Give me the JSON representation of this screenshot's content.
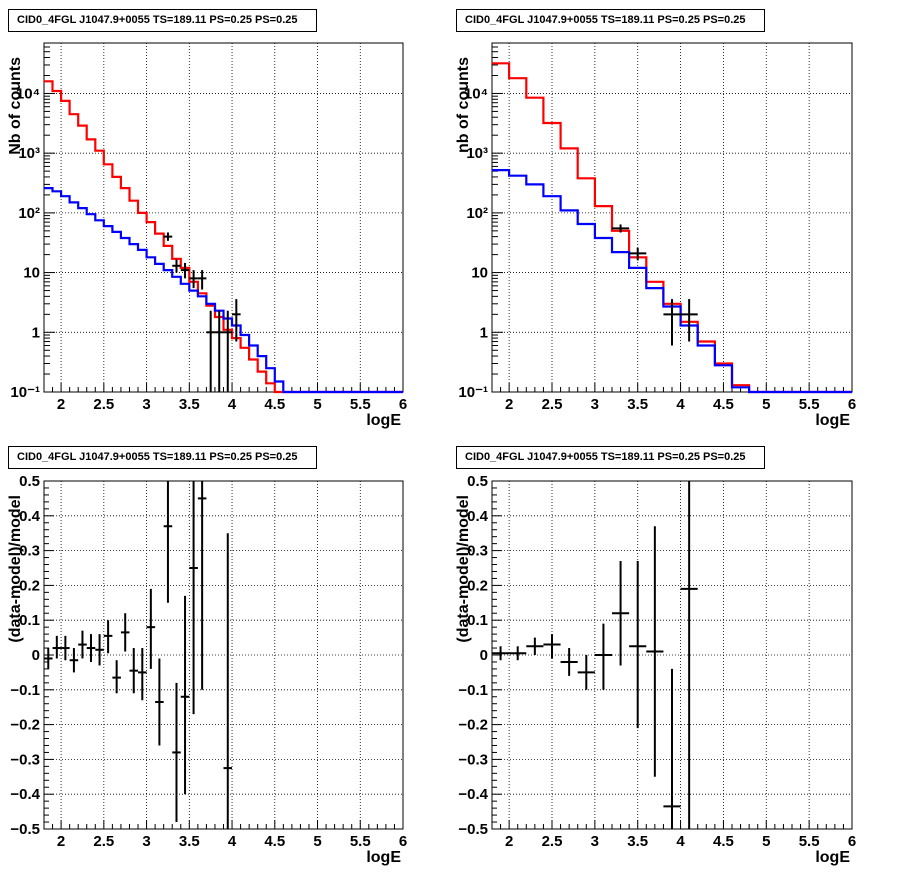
{
  "chart_data": [
    {
      "type": "step-histogram",
      "title": "CID0_4FGL J1047.9+0055 TS=189.11 PS=0.25 PS=0.25",
      "xlabel": "logE",
      "ylabel": "Nb of counts",
      "xlim": [
        1.8,
        6.0
      ],
      "ylim": [
        0.1,
        70000
      ],
      "yscale": "log",
      "grid": true,
      "xticks": [
        "2",
        "2.5",
        "3",
        "3.5",
        "4",
        "4.5",
        "5",
        "5.5",
        "6"
      ],
      "yticks": [
        "10⁻¹",
        "1",
        "10",
        "10²",
        "10³",
        "10⁴"
      ],
      "bin_width": 0.1,
      "series": [
        {
          "color": "#ff0000",
          "x": [
            1.85,
            1.95,
            2.05,
            2.15,
            2.25,
            2.35,
            2.45,
            2.55,
            2.65,
            2.75,
            2.85,
            2.95,
            3.05,
            3.15,
            3.25,
            3.35,
            3.45,
            3.55,
            3.65,
            3.75,
            3.85,
            3.95,
            4.05,
            4.15,
            4.25,
            4.35,
            4.45,
            4.55,
            4.65,
            4.75,
            4.85,
            4.95,
            5.05,
            5.15,
            5.25,
            5.35,
            5.45,
            5.55,
            5.65,
            5.75,
            5.85,
            5.95
          ],
          "y": [
            16000,
            11000,
            7500,
            4500,
            2900,
            1700,
            1100,
            650,
            400,
            260,
            160,
            100,
            70,
            45,
            28,
            17,
            12,
            7,
            4.5,
            2.8,
            1.8,
            1.1,
            0.8,
            0.55,
            0.35,
            0.22,
            0.14,
            0.1,
            0.1,
            0.1,
            0.1,
            0.1,
            0.1,
            0.1,
            0.1,
            0.1,
            0.1,
            0.1,
            0.1,
            0.1,
            0.1,
            0.1
          ]
        },
        {
          "color": "#0000ff",
          "x": [
            1.85,
            1.95,
            2.05,
            2.15,
            2.25,
            2.35,
            2.45,
            2.55,
            2.65,
            2.75,
            2.85,
            2.95,
            3.05,
            3.15,
            3.25,
            3.35,
            3.45,
            3.55,
            3.65,
            3.75,
            3.85,
            3.95,
            4.05,
            4.15,
            4.25,
            4.35,
            4.45,
            4.55,
            4.65,
            4.75,
            4.85,
            4.95,
            5.05,
            5.15,
            5.25,
            5.35,
            5.45,
            5.55,
            5.65,
            5.75,
            5.85,
            5.95
          ],
          "y": [
            260,
            230,
            190,
            150,
            120,
            95,
            75,
            60,
            48,
            38,
            30,
            24,
            18,
            14,
            11,
            8.5,
            6.5,
            5,
            4,
            3,
            2.3,
            1.7,
            1.3,
            0.9,
            0.6,
            0.4,
            0.25,
            0.15,
            0.1,
            0.1,
            0.1,
            0.1,
            0.1,
            0.1,
            0.1,
            0.1,
            0.1,
            0.1,
            0.1,
            0.1,
            0.1,
            0.1
          ]
        }
      ],
      "points": [
        {
          "x": 3.25,
          "y": 40,
          "lo": 34,
          "hi": 47
        },
        {
          "x": 3.35,
          "y": 13,
          "lo": 10,
          "hi": 16.5
        },
        {
          "x": 3.45,
          "y": 11,
          "lo": 8,
          "hi": 14.5
        },
        {
          "x": 3.55,
          "y": 8,
          "lo": 5.5,
          "hi": 11
        },
        {
          "x": 3.65,
          "y": 8,
          "lo": 5.2,
          "hi": 11
        },
        {
          "x": 3.75,
          "y": 1,
          "lo": 0.1,
          "hi": 2.3
        },
        {
          "x": 3.85,
          "y": 1,
          "lo": 0.1,
          "hi": 2.3
        },
        {
          "x": 3.95,
          "y": 1,
          "lo": 0.1,
          "hi": 2.3
        },
        {
          "x": 4.05,
          "y": 2,
          "lo": 0.7,
          "hi": 3.6
        }
      ]
    },
    {
      "type": "step-histogram",
      "title": "CID0_4FGL J1047.9+0055 TS=189.11 PS=0.25 PS=0.25",
      "xlabel": "logE",
      "ylabel": "nb of counts",
      "xlim": [
        1.8,
        6.0
      ],
      "ylim": [
        0.1,
        70000
      ],
      "yscale": "log",
      "grid": true,
      "xticks": [
        "2",
        "2.5",
        "3",
        "3.5",
        "4",
        "4.5",
        "5",
        "5.5",
        "6"
      ],
      "yticks": [
        "10⁻¹",
        "1",
        "10",
        "10²",
        "10³",
        "10⁴"
      ],
      "bin_width": 0.2,
      "series": [
        {
          "color": "#ff0000",
          "x": [
            1.9,
            2.1,
            2.3,
            2.5,
            2.7,
            2.9,
            3.1,
            3.3,
            3.5,
            3.7,
            3.9,
            4.1,
            4.3,
            4.5,
            4.7,
            4.9,
            5.1,
            5.3,
            5.5,
            5.7,
            5.9
          ],
          "y": [
            32000,
            18000,
            8500,
            3200,
            1200,
            380,
            130,
            50,
            18,
            7,
            3,
            1.5,
            0.7,
            0.3,
            0.13,
            0.1,
            0.1,
            0.1,
            0.1,
            0.1,
            0.1
          ]
        },
        {
          "color": "#0000ff",
          "x": [
            1.9,
            2.1,
            2.3,
            2.5,
            2.7,
            2.9,
            3.1,
            3.3,
            3.5,
            3.7,
            3.9,
            4.1,
            4.3,
            4.5,
            4.7,
            4.9,
            5.1,
            5.3,
            5.5,
            5.7,
            5.9
          ],
          "y": [
            520,
            420,
            300,
            190,
            110,
            65,
            38,
            22,
            12,
            5.5,
            2.7,
            1.3,
            0.6,
            0.28,
            0.12,
            0.1,
            0.1,
            0.1,
            0.1,
            0.1,
            0.1
          ]
        }
      ],
      "points": [
        {
          "x": 3.3,
          "y": 55,
          "lo": 47,
          "hi": 64
        },
        {
          "x": 3.5,
          "y": 21,
          "lo": 16,
          "hi": 26
        },
        {
          "x": 3.9,
          "y": 2,
          "lo": 0.6,
          "hi": 3.6
        },
        {
          "x": 4.1,
          "y": 2,
          "lo": 0.7,
          "hi": 3.6
        }
      ]
    },
    {
      "type": "scatter-errorbars",
      "title": "CID0_4FGL J1047.9+0055 TS=189.11 PS=0.25 PS=0.25",
      "xlabel": "logE",
      "ylabel": "(data-model)/model",
      "xlim": [
        1.8,
        6.0
      ],
      "ylim": [
        -0.5,
        0.5
      ],
      "grid": true,
      "xticks": [
        "2",
        "2.5",
        "3",
        "3.5",
        "4",
        "4.5",
        "5",
        "5.5",
        "6"
      ],
      "yticks": [
        "−0.5",
        "−0.4",
        "−0.3",
        "−0.2",
        "−0.1",
        "0",
        "0.1",
        "0.2",
        "0.3",
        "0.4",
        "0.5"
      ],
      "bin_width": 0.1,
      "points": [
        {
          "x": 1.85,
          "y": -0.01,
          "lo": -0.04,
          "hi": 0.02
        },
        {
          "x": 1.95,
          "y": 0.02,
          "lo": -0.01,
          "hi": 0.055
        },
        {
          "x": 2.05,
          "y": 0.02,
          "lo": -0.015,
          "hi": 0.055
        },
        {
          "x": 2.15,
          "y": -0.015,
          "lo": -0.05,
          "hi": 0.02
        },
        {
          "x": 2.25,
          "y": 0.03,
          "lo": -0.01,
          "hi": 0.07
        },
        {
          "x": 2.35,
          "y": 0.02,
          "lo": -0.02,
          "hi": 0.06
        },
        {
          "x": 2.45,
          "y": 0.015,
          "lo": -0.03,
          "hi": 0.06
        },
        {
          "x": 2.55,
          "y": 0.055,
          "lo": 0.005,
          "hi": 0.1
        },
        {
          "x": 2.65,
          "y": -0.065,
          "lo": -0.11,
          "hi": -0.015
        },
        {
          "x": 2.75,
          "y": 0.065,
          "lo": 0.01,
          "hi": 0.12
        },
        {
          "x": 2.85,
          "y": -0.045,
          "lo": -0.11,
          "hi": 0.02
        },
        {
          "x": 2.95,
          "y": -0.05,
          "lo": -0.13,
          "hi": 0.02
        },
        {
          "x": 3.05,
          "y": 0.08,
          "lo": -0.04,
          "hi": 0.19
        },
        {
          "x": 3.15,
          "y": -0.135,
          "lo": -0.26,
          "hi": -0.01
        },
        {
          "x": 3.25,
          "y": 0.37,
          "lo": 0.15,
          "hi": 0.5
        },
        {
          "x": 3.35,
          "y": -0.28,
          "lo": -0.48,
          "hi": -0.08
        },
        {
          "x": 3.45,
          "y": -0.12,
          "lo": -0.4,
          "hi": 0.17
        },
        {
          "x": 3.55,
          "y": 0.25,
          "lo": -0.17,
          "hi": 0.5
        },
        {
          "x": 3.65,
          "y": 0.45,
          "lo": -0.1,
          "hi": 0.5
        },
        {
          "x": 3.95,
          "y": -0.325,
          "lo": -0.5,
          "hi": 0.35
        }
      ]
    },
    {
      "type": "scatter-errorbars",
      "title": "CID0_4FGL J1047.9+0055 TS=189.11 PS=0.25 PS=0.25",
      "xlabel": "logE",
      "ylabel": "(data-model)/model",
      "xlim": [
        1.8,
        6.0
      ],
      "ylim": [
        -0.5,
        0.5
      ],
      "grid": true,
      "xticks": [
        "2",
        "2.5",
        "3",
        "3.5",
        "4",
        "4.5",
        "5",
        "5.5",
        "6"
      ],
      "yticks": [
        "−0.5",
        "−0.4",
        "−0.3",
        "−0.2",
        "−0.1",
        "0",
        "0.1",
        "0.2",
        "0.3",
        "0.4",
        "0.5"
      ],
      "bin_width": 0.2,
      "points": [
        {
          "x": 1.9,
          "y": 0.005,
          "lo": -0.015,
          "hi": 0.025
        },
        {
          "x": 2.1,
          "y": 0.005,
          "lo": -0.015,
          "hi": 0.025
        },
        {
          "x": 2.3,
          "y": 0.025,
          "lo": 0.0,
          "hi": 0.05
        },
        {
          "x": 2.5,
          "y": 0.03,
          "lo": -0.01,
          "hi": 0.06
        },
        {
          "x": 2.7,
          "y": -0.02,
          "lo": -0.06,
          "hi": 0.02
        },
        {
          "x": 2.9,
          "y": -0.05,
          "lo": -0.1,
          "hi": 0.0
        },
        {
          "x": 3.1,
          "y": 0.0,
          "lo": -0.1,
          "hi": 0.09
        },
        {
          "x": 3.3,
          "y": 0.12,
          "lo": -0.03,
          "hi": 0.27
        },
        {
          "x": 3.5,
          "y": 0.025,
          "lo": -0.21,
          "hi": 0.27
        },
        {
          "x": 3.7,
          "y": 0.01,
          "lo": -0.35,
          "hi": 0.37
        },
        {
          "x": 3.9,
          "y": -0.435,
          "lo": -0.5,
          "hi": -0.04
        },
        {
          "x": 4.1,
          "y": 0.19,
          "lo": -0.5,
          "hi": 0.5
        }
      ]
    }
  ]
}
